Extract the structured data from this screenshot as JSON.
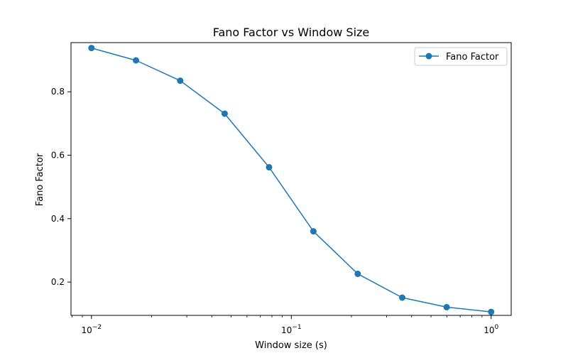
{
  "chart_data": {
    "type": "line",
    "title": "Fano Factor vs Window Size",
    "xlabel": "Window size (s)",
    "ylabel": "Fano Factor",
    "xscale": "log",
    "xlim": [
      0.0079,
      1.26
    ],
    "ylim": [
      0.095,
      0.955
    ],
    "x_ticks": [
      {
        "value": 0.01,
        "base": "10",
        "exp": "−2"
      },
      {
        "value": 0.1,
        "base": "10",
        "exp": "−1"
      },
      {
        "value": 1,
        "base": "10",
        "exp": "0"
      }
    ],
    "y_ticks": [
      {
        "value": 0.2,
        "label": "0.2"
      },
      {
        "value": 0.4,
        "label": "0.4"
      },
      {
        "value": 0.6,
        "label": "0.6"
      },
      {
        "value": 0.8,
        "label": "0.8"
      }
    ],
    "grid": false,
    "legend_position": "top-right",
    "series": [
      {
        "name": "Fano Factor",
        "color": "#1f77b4",
        "marker": "circle",
        "x": [
          0.01,
          0.0167,
          0.0278,
          0.0464,
          0.0774,
          0.129,
          0.215,
          0.359,
          0.599,
          1.0
        ],
        "y": [
          0.938,
          0.899,
          0.835,
          0.731,
          0.562,
          0.36,
          0.226,
          0.151,
          0.121,
          0.106
        ]
      }
    ]
  }
}
